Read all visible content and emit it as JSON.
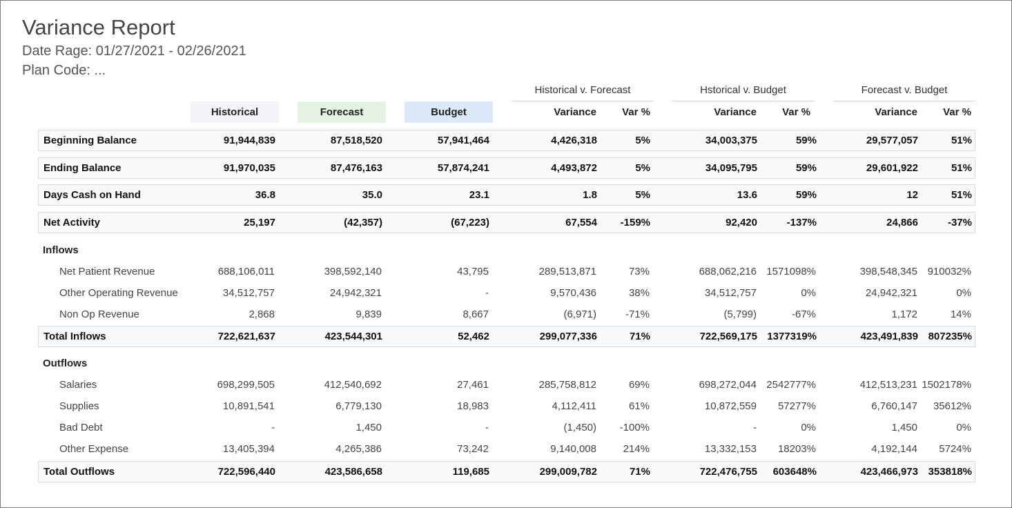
{
  "report": {
    "title": "Variance Report",
    "date_range": "Date Rage: 01/27/2021 - 02/26/2021",
    "plan_code": "Plan Code: ..."
  },
  "groups": {
    "hist_v_fc": "Historical v. Forecast",
    "hist_v_bud": "Hstorical v. Budget",
    "fc_v_bud": "Forecast v. Budget"
  },
  "columns": {
    "historical": "Historical",
    "forecast": "Forecast",
    "budget": "Budget",
    "variance": "Variance",
    "var_pct": "Var %"
  },
  "colors": {
    "historical": "#f2f4f7",
    "forecast": "#e3f2e3",
    "budget": "#dbe9f8",
    "border": "#d5dbe2"
  },
  "sections": {
    "inflows": "Inflows",
    "outflows": "Outflows"
  },
  "rows": [
    {
      "label": "Beginning Balance",
      "hist": "91,944,839",
      "fc": "87,518,520",
      "bud": "57,941,464",
      "hf_var": "4,426,318",
      "hf_pct": "5%",
      "hb_var": "34,003,375",
      "hb_pct": "59%",
      "fb_var": "29,577,057",
      "fb_pct": "51%"
    },
    {
      "label": "Ending Balance",
      "hist": "91,970,035",
      "fc": "87,476,163",
      "bud": "57,874,241",
      "hf_var": "4,493,872",
      "hf_pct": "5%",
      "hb_var": "34,095,795",
      "hb_pct": "59%",
      "fb_var": "29,601,922",
      "fb_pct": "51%"
    },
    {
      "label": "Days Cash on Hand",
      "hist": "36.8",
      "fc": "35.0",
      "bud": "23.1",
      "hf_var": "1.8",
      "hf_pct": "5%",
      "hb_var": "13.6",
      "hb_pct": "59%",
      "fb_var": "12",
      "fb_pct": "51%"
    },
    {
      "label": "Net Activity",
      "hist": "25,197",
      "fc": "(42,357)",
      "bud": "(67,223)",
      "hf_var": "67,554",
      "hf_pct": "-159%",
      "hb_var": "92,420",
      "hb_pct": "-137%",
      "fb_var": "24,866",
      "fb_pct": "-37%"
    },
    {
      "label": "Net Patient Revenue",
      "hist": "688,106,011",
      "fc": "398,592,140",
      "bud": "43,795",
      "hf_var": "289,513,871",
      "hf_pct": "73%",
      "hb_var": "688,062,216",
      "hb_pct": "1571098%",
      "fb_var": "398,548,345",
      "fb_pct": "910032%"
    },
    {
      "label": "Other Operating Revenue",
      "hist": "34,512,757",
      "fc": "24,942,321",
      "bud": "-",
      "hf_var": "9,570,436",
      "hf_pct": "38%",
      "hb_var": "34,512,757",
      "hb_pct": "0%",
      "fb_var": "24,942,321",
      "fb_pct": "0%"
    },
    {
      "label": "Non Op Revenue",
      "hist": "2,868",
      "fc": "9,839",
      "bud": "8,667",
      "hf_var": "(6,971)",
      "hf_pct": "-71%",
      "hb_var": "(5,799)",
      "hb_pct": "-67%",
      "fb_var": "1,172",
      "fb_pct": "14%"
    },
    {
      "label": "Total Inflows",
      "hist": "722,621,637",
      "fc": "423,544,301",
      "bud": "52,462",
      "hf_var": "299,077,336",
      "hf_pct": "71%",
      "hb_var": "722,569,175",
      "hb_pct": "1377319%",
      "fb_var": "423,491,839",
      "fb_pct": "807235%"
    },
    {
      "label": "Salaries",
      "hist": "698,299,505",
      "fc": "412,540,692",
      "bud": "27,461",
      "hf_var": "285,758,812",
      "hf_pct": "69%",
      "hb_var": "698,272,044",
      "hb_pct": "2542777%",
      "fb_var": "412,513,231",
      "fb_pct": "1502178%"
    },
    {
      "label": "Supplies",
      "hist": "10,891,541",
      "fc": "6,779,130",
      "bud": "18,983",
      "hf_var": "4,112,411",
      "hf_pct": "61%",
      "hb_var": "10,872,559",
      "hb_pct": "57277%",
      "fb_var": "6,760,147",
      "fb_pct": "35612%"
    },
    {
      "label": "Bad Debt",
      "hist": "-",
      "fc": "1,450",
      "bud": "-",
      "hf_var": "(1,450)",
      "hf_pct": "-100%",
      "hb_var": "-",
      "hb_pct": "0%",
      "fb_var": "1,450",
      "fb_pct": "0%"
    },
    {
      "label": "Other Expense",
      "hist": "13,405,394",
      "fc": "4,265,386",
      "bud": "73,242",
      "hf_var": "9,140,008",
      "hf_pct": "214%",
      "hb_var": "13,332,153",
      "hb_pct": "18203%",
      "fb_var": "4,192,144",
      "fb_pct": "5724%"
    },
    {
      "label": "Total Outflows",
      "hist": "722,596,440",
      "fc": "423,586,658",
      "bud": "119,685",
      "hf_var": "299,009,782",
      "hf_pct": "71%",
      "hb_var": "722,476,755",
      "hb_pct": "603648%",
      "fb_var": "423,466,973",
      "fb_pct": "353818%"
    }
  ]
}
